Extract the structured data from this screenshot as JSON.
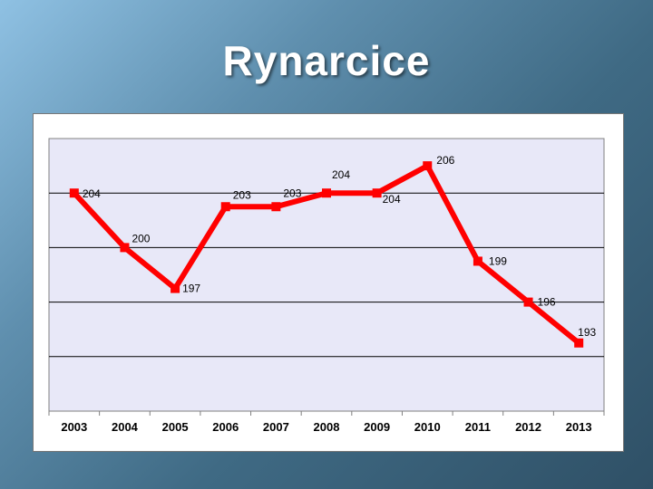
{
  "slide": {
    "title": "Rynarcice"
  },
  "chart_data": {
    "type": "line",
    "title": "",
    "xlabel": "",
    "ylabel": "",
    "categories": [
      "2003",
      "2004",
      "2005",
      "2006",
      "2007",
      "2008",
      "2009",
      "2010",
      "2011",
      "2012",
      "2013"
    ],
    "series": [
      {
        "values": [
          204,
          200,
          197,
          203,
          203,
          204,
          204,
          206,
          199,
          196,
          193
        ]
      }
    ],
    "ylim": [
      188,
      208
    ],
    "grid": true,
    "legend": "none",
    "colors": {
      "line": "#ff0000",
      "marker": "#ff0000",
      "plot_bg": "#e8e8f8",
      "grid": "#000000"
    }
  }
}
